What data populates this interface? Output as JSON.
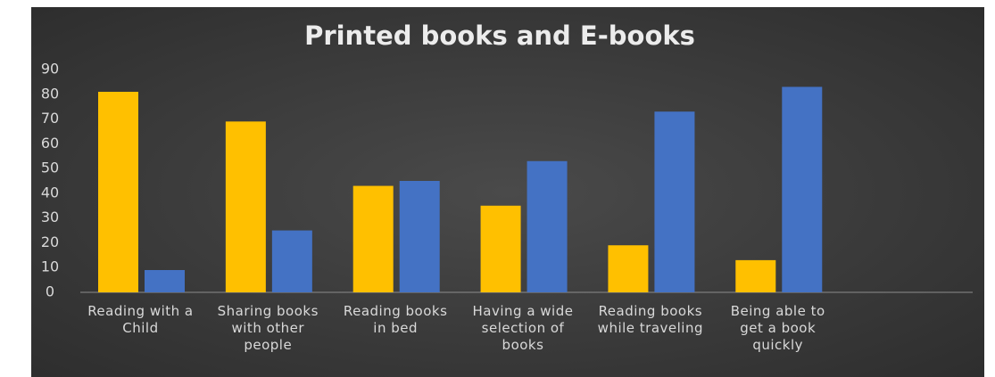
{
  "chart_data": {
    "type": "bar",
    "title": "Printed books and E-books",
    "categories": [
      "Reading with a Child",
      "Sharing books with other people",
      "Reading books in bed",
      "Having a wide selection of books",
      "Reading books while traveling",
      "Being able to get a book quickly",
      null
    ],
    "series": [
      {
        "color": "#ffc000",
        "values": [
          81,
          69,
          43,
          35,
          19,
          13,
          null
        ]
      },
      {
        "color": "#4472c4",
        "values": [
          9,
          25,
          45,
          53,
          73,
          83,
          null
        ]
      }
    ],
    "ylim": [
      0,
      90
    ],
    "yticks": [
      0,
      10,
      20,
      30,
      40,
      50,
      60,
      70,
      80,
      90
    ],
    "grid": false
  }
}
